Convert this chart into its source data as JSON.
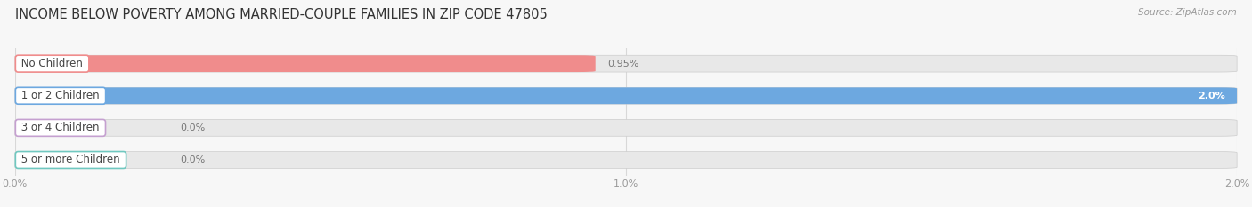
{
  "title": "INCOME BELOW POVERTY AMONG MARRIED-COUPLE FAMILIES IN ZIP CODE 47805",
  "source": "Source: ZipAtlas.com",
  "categories": [
    "No Children",
    "1 or 2 Children",
    "3 or 4 Children",
    "5 or more Children"
  ],
  "values": [
    0.95,
    2.0,
    0.0,
    0.0
  ],
  "bar_colors": [
    "#f08c8c",
    "#6da8e0",
    "#c5a0d0",
    "#70c8c0"
  ],
  "xlim_max": 2.0,
  "xticks": [
    0.0,
    1.0,
    2.0
  ],
  "xticklabels": [
    "0.0%",
    "1.0%",
    "2.0%"
  ],
  "background_color": "#f7f7f7",
  "bar_bg_color": "#e8e8e8",
  "title_fontsize": 10.5,
  "label_fontsize": 8.5,
  "value_fontsize": 8.0,
  "value_label_inside_color": "#ffffff",
  "value_label_outside_color": "#777777"
}
